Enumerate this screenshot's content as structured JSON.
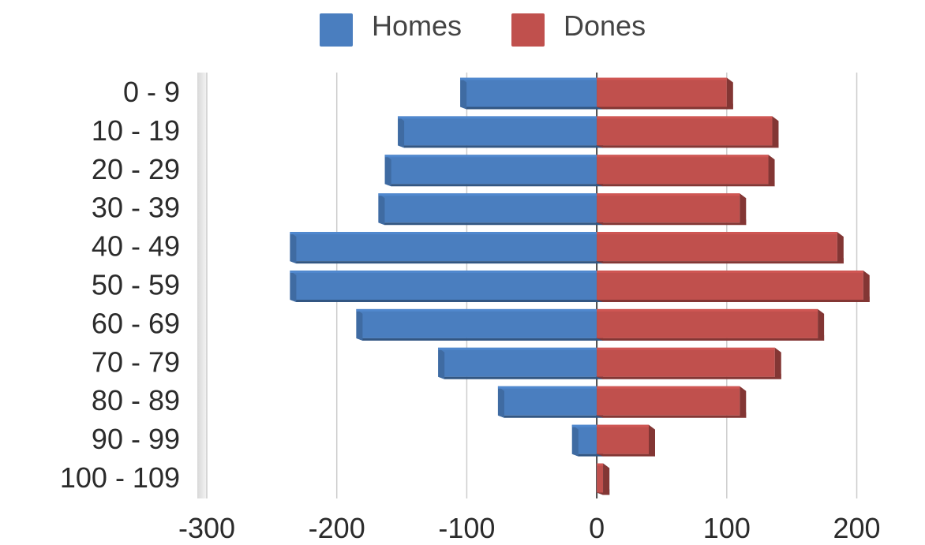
{
  "chart_data": {
    "type": "bar",
    "orientation": "horizontal",
    "style": "population-pyramid-3d",
    "categories": [
      "0 - 9",
      "10 - 19",
      "20 - 29",
      "30 - 39",
      "40 - 49",
      "50 - 59",
      "60 - 69",
      "70 - 79",
      "80 - 89",
      "90 - 99",
      "100 - 109"
    ],
    "series": [
      {
        "name": "Homes",
        "color": "#4a7ebf",
        "values": [
          -105,
          -153,
          -163,
          -168,
          -236,
          -236,
          -185,
          -122,
          -76,
          -19,
          0
        ]
      },
      {
        "name": "Dones",
        "color": "#c0504d",
        "values": [
          100,
          135,
          132,
          110,
          185,
          205,
          170,
          137,
          110,
          40,
          2
        ]
      }
    ],
    "xlim": [
      -300,
      210
    ],
    "x_ticks": [
      "-300",
      "-200",
      "-100",
      "0",
      "100",
      "200"
    ],
    "x_tick_values": [
      -300,
      -200,
      -100,
      0,
      100,
      200
    ],
    "grid": true,
    "legend_position": "top"
  }
}
